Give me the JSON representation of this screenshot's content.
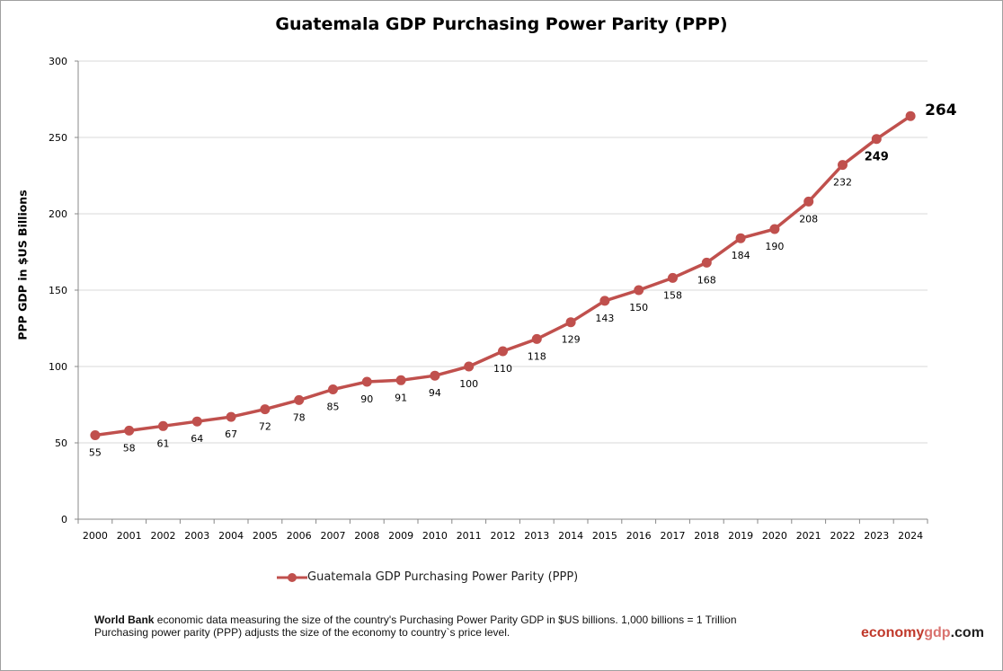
{
  "chart_data": {
    "type": "line",
    "title": "Guatemala GDP Purchasing Power Parity (PPP)",
    "xlabel": "",
    "ylabel": "PPP GDP in $US Billions",
    "ylim": [
      0,
      300
    ],
    "yticks": [
      0,
      50,
      100,
      150,
      200,
      250,
      300
    ],
    "grid": true,
    "legend_placement": "bottom",
    "categories": [
      "2000",
      "2001",
      "2002",
      "2003",
      "2004",
      "2005",
      "2006",
      "2007",
      "2008",
      "2009",
      "2010",
      "2011",
      "2012",
      "2013",
      "2014",
      "2015",
      "2016",
      "2017",
      "2018",
      "2019",
      "2020",
      "2021",
      "2022",
      "2023",
      "2024"
    ],
    "series": [
      {
        "name": "Guatemala GDP Purchasing Power Parity (PPP)",
        "color": "#c0504d",
        "values": [
          55,
          58,
          61,
          64,
          67,
          72,
          78,
          85,
          90,
          91,
          94,
          100,
          110,
          118,
          129,
          143,
          150,
          158,
          168,
          184,
          190,
          208,
          232,
          249,
          264
        ]
      }
    ]
  },
  "footer": {
    "bold_lead": "World Bank",
    "line1": " economic data  measuring the size of the country's Purchasing Power Parity GDP in $US billions. 1,000 billions = 1 Trillion",
    "line2": "Purchasing power parity (PPP) adjusts the size of the economy to country`s price level."
  },
  "brand": {
    "part1": "economy",
    "part2": "gdp",
    "part3": ".com",
    "color1": "#c0392b",
    "color2": "#c0504d"
  }
}
